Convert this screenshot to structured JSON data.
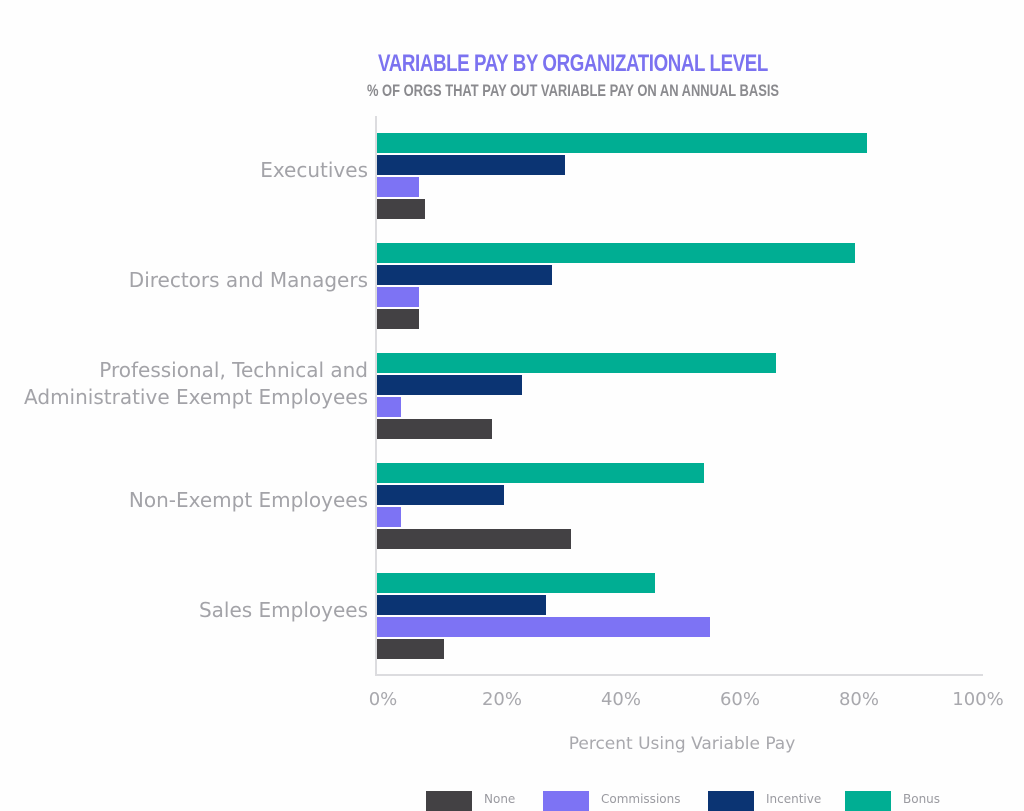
{
  "chart_data": {
    "type": "bar",
    "orientation": "horizontal",
    "title": "VARIABLE PAY BY ORGANIZATIONAL LEVEL",
    "subtitle": "% OF ORGS THAT PAY OUT VARIABLE PAY ON AN ANNUAL BASIS",
    "xlabel": "Percent Using Variable Pay",
    "ylabel": "",
    "xlim": [
      0,
      100
    ],
    "x_ticks": [
      "0%",
      "20%",
      "40%",
      "60%",
      "80%",
      "100%"
    ],
    "grid": false,
    "legend_position": "bottom",
    "categories": [
      [
        "Executives"
      ],
      [
        "Directors and Managers"
      ],
      [
        "Professional, Technical and",
        "Administrative Exempt Employees"
      ],
      [
        "Non-Exempt Employees"
      ],
      [
        "Sales Employees"
      ]
    ],
    "category_names": [
      "Executives",
      "Directors and Managers",
      "Professional, Technical and Administrative Exempt Employees",
      "Non-Exempt Employees",
      "Sales Employees"
    ],
    "series": [
      {
        "name": "Bonus",
        "color": "#00ae93",
        "values": [
          81,
          79,
          66,
          54,
          46
        ]
      },
      {
        "name": "Incentive",
        "color": "#0b3473",
        "values": [
          31,
          29,
          24,
          21,
          28
        ]
      },
      {
        "name": "Commissions",
        "color": "#7d73f4",
        "values": [
          7,
          7,
          4,
          4,
          55
        ]
      },
      {
        "name": "None",
        "color": "#434144",
        "values": [
          8,
          7,
          19,
          32,
          11
        ]
      }
    ]
  },
  "legend": [
    {
      "label": "None",
      "color": "#434144"
    },
    {
      "label": "Commissions",
      "color": "#7d73f4"
    },
    {
      "label": "Incentive",
      "color": "#0b3473"
    },
    {
      "label": "Bonus",
      "color": "#00ae93"
    }
  ]
}
